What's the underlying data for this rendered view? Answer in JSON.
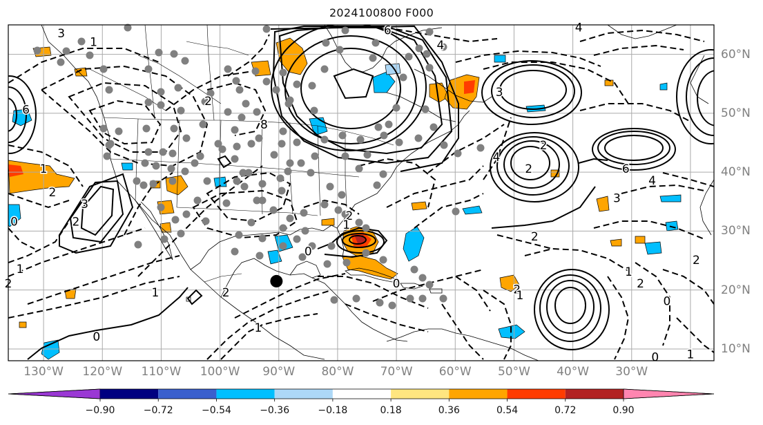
{
  "title": "2024100800 F000",
  "map": {
    "lon_range": [
      -136,
      -16
    ],
    "lat_range": [
      8,
      65
    ],
    "grid_lons": [
      -130,
      -120,
      -110,
      -100,
      -90,
      -80,
      -70,
      -60,
      -50,
      -40,
      -30,
      -20
    ],
    "grid_lats": [
      10,
      20,
      30,
      40,
      50,
      60
    ],
    "gridline_color": "#aaaaaa",
    "frame_color": "#000000",
    "contour_color": "#000000",
    "station_marker_color": "#808080",
    "storm_marker_color": "#000000"
  },
  "lon_labels": [
    "130°W",
    "120°W",
    "110°W",
    "100°W",
    "90°W",
    "80°W",
    "70°W",
    "60°W",
    "50°W",
    "40°W",
    "30°W"
  ],
  "lat_labels": [
    "60°N",
    "50°N",
    "40°N",
    "30°N",
    "20°N",
    "10°N"
  ],
  "contour_labels": [
    {
      "text": "3",
      "lon": -127,
      "lat": 63.5
    },
    {
      "text": "1",
      "lon": -121.5,
      "lat": 62
    },
    {
      "text": "6",
      "lon": -71.5,
      "lat": 64
    },
    {
      "text": "4",
      "lon": -62.5,
      "lat": 61.5
    },
    {
      "text": "4",
      "lon": -39,
      "lat": 64.5
    },
    {
      "text": "3",
      "lon": -52.5,
      "lat": 53.5
    },
    {
      "text": "2",
      "lon": -102,
      "lat": 52
    },
    {
      "text": "8",
      "lon": -92.5,
      "lat": 48
    },
    {
      "text": "6",
      "lon": -133,
      "lat": 50.5
    },
    {
      "text": "2",
      "lon": -45,
      "lat": 44.5
    },
    {
      "text": "4",
      "lon": -53,
      "lat": 42.5
    },
    {
      "text": "6",
      "lon": -31,
      "lat": 40.5
    },
    {
      "text": "4",
      "lon": -26.5,
      "lat": 38.5
    },
    {
      "text": "3",
      "lon": -32.5,
      "lat": 35.5
    },
    {
      "text": "2",
      "lon": -47.5,
      "lat": 40.5
    },
    {
      "text": "1",
      "lon": -130,
      "lat": 40.5
    },
    {
      "text": "2",
      "lon": -128.5,
      "lat": 36.5
    },
    {
      "text": "3",
      "lon": -123,
      "lat": 34.5
    },
    {
      "text": "2",
      "lon": -124.5,
      "lat": 31.5
    },
    {
      "text": "0",
      "lon": -135,
      "lat": 31.5
    },
    {
      "text": "1",
      "lon": -134,
      "lat": 23.5
    },
    {
      "text": "2",
      "lon": -136,
      "lat": 21
    },
    {
      "text": "0",
      "lon": -121,
      "lat": 12
    },
    {
      "text": "1",
      "lon": -111,
      "lat": 19.5
    },
    {
      "text": "1",
      "lon": -93.5,
      "lat": 13.5
    },
    {
      "text": "2",
      "lon": -99,
      "lat": 19.5
    },
    {
      "text": "0",
      "lon": -85,
      "lat": 26.5
    },
    {
      "text": "2",
      "lon": -78,
      "lat": 32.5
    },
    {
      "text": "1",
      "lon": -78.5,
      "lat": 31
    },
    {
      "text": "2",
      "lon": -46.5,
      "lat": 29
    },
    {
      "text": "0",
      "lon": -70,
      "lat": 21
    },
    {
      "text": "2",
      "lon": -49.5,
      "lat": 20
    },
    {
      "text": "1",
      "lon": -49,
      "lat": 19
    },
    {
      "text": "2",
      "lon": -28.5,
      "lat": 21
    },
    {
      "text": "1",
      "lon": -30.5,
      "lat": 23
    },
    {
      "text": "0",
      "lon": -24,
      "lat": 18
    },
    {
      "text": "0",
      "lon": -26,
      "lat": 8.5
    },
    {
      "text": "2",
      "lon": -19,
      "lat": 25
    },
    {
      "text": "1",
      "lon": -20,
      "lat": 9
    }
  ],
  "colorbar": {
    "ticks": [
      "−0.90",
      "−0.72",
      "−0.54",
      "−0.36",
      "−0.18",
      "0.18",
      "0.36",
      "0.54",
      "0.72",
      "0.90"
    ],
    "under_color": "#9a38d4",
    "colors": [
      "#8b2fc9",
      "#000080",
      "#3a5fcd",
      "#00bfff",
      "#add8f7",
      "#ffffff",
      "#ffe680",
      "#ffa500",
      "#ff3c00",
      "#b22222",
      "#ff85b0"
    ],
    "over_color": "#ff85b0"
  }
}
